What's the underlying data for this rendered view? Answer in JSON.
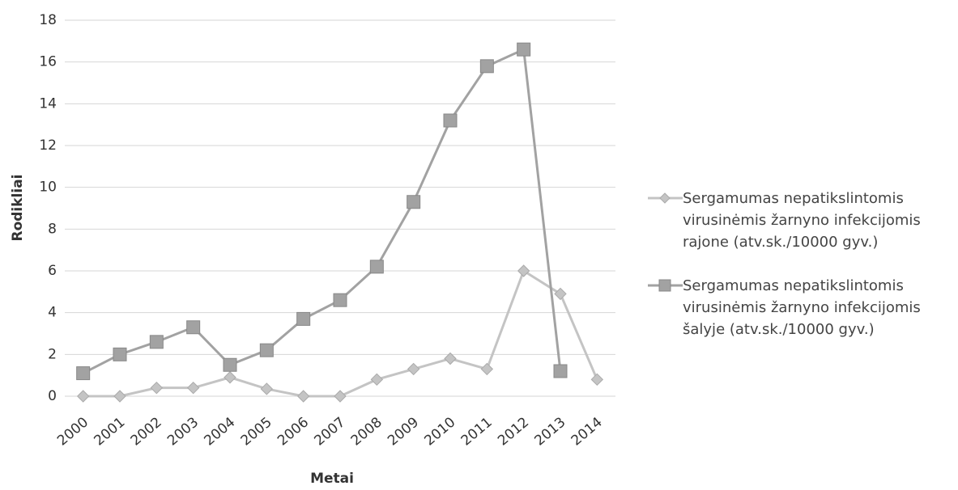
{
  "chart_data": {
    "type": "line",
    "x_label": "Metai",
    "y_label": "Rodikliai",
    "categories": [
      "2000",
      "2001",
      "2002",
      "2003",
      "2004",
      "2005",
      "2006",
      "2007",
      "2008",
      "2009",
      "2010",
      "2011",
      "2012",
      "2013",
      "2014"
    ],
    "series": [
      {
        "name": "Sergamumas nepatikslintomis virusinėmis žarnyno infekcijomis rajone (atv.sk./10000 gyv.)",
        "color": "#c4c4c4",
        "marker": "diamond",
        "values": [
          0,
          0,
          0.4,
          0.4,
          0.9,
          0.35,
          0,
          0,
          0.8,
          1.3,
          1.8,
          1.3,
          6.0,
          4.9,
          0.8
        ]
      },
      {
        "name": "Sergamumas nepatikslintomis virusinėmis žarnyno infekcijomis šalyje (atv.sk./10000 gyv.)",
        "color": "#a2a2a2",
        "marker": "square",
        "values": [
          1.1,
          2.0,
          2.6,
          3.3,
          1.5,
          2.2,
          3.7,
          4.6,
          6.2,
          9.3,
          13.2,
          15.8,
          16.6,
          1.2,
          null
        ]
      }
    ],
    "ylim": [
      0,
      18
    ],
    "yticks": [
      0,
      2,
      4,
      6,
      8,
      10,
      12,
      14,
      16,
      18
    ],
    "grid": true,
    "legend": "right"
  }
}
